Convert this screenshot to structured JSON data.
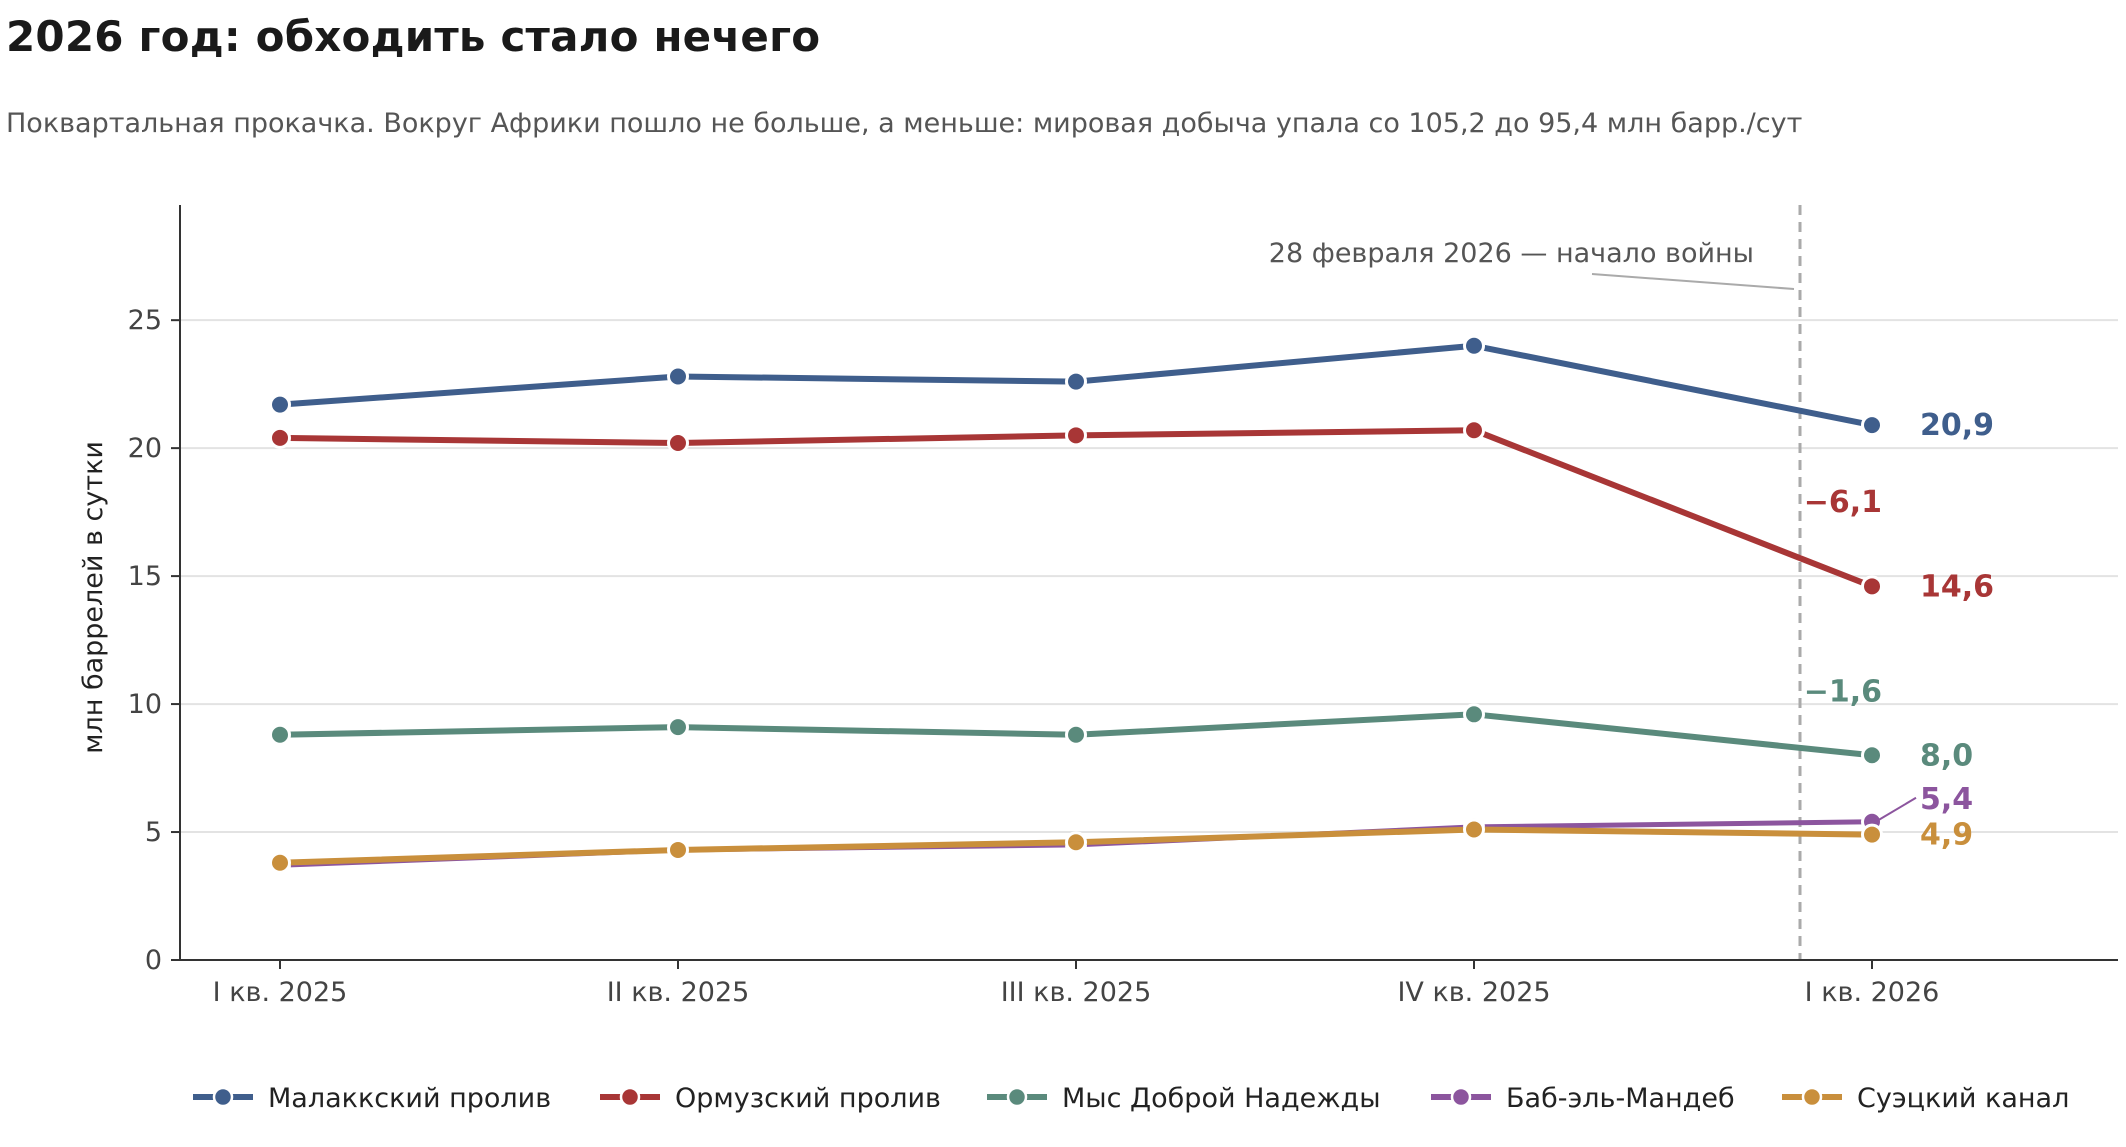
{
  "title": "2026 год: обходить стало нечего",
  "subtitle": "Поквартальная прокачка. Вокруг Африки пошло не больше, а меньше: мировая добыча упала со 105,2 до 95,4 млн барр./сут",
  "chart_data": {
    "type": "line",
    "categories": [
      "I кв. 2025",
      "II кв. 2025",
      "III кв. 2025",
      "IV кв. 2025",
      "I кв. 2026"
    ],
    "ylabel": "млн баррелей в сутки",
    "xlabel": "",
    "ylim": [
      0,
      29.5
    ],
    "yticks": [
      0,
      5,
      10,
      15,
      20,
      25
    ],
    "grid": "horizontal",
    "legend": "bottom",
    "series": [
      {
        "name": "Малаккский пролив",
        "color": "#3f5e8c",
        "values": [
          21.7,
          22.8,
          22.6,
          24.0,
          20.9
        ],
        "end_label": "20,9"
      },
      {
        "name": "Ормузский пролив",
        "color": "#a83636",
        "values": [
          20.4,
          20.2,
          20.5,
          20.7,
          14.6
        ],
        "end_label": "14,6",
        "change_label": "−6,1"
      },
      {
        "name": "Мыс Доброй Надежды",
        "color": "#5a8a7c",
        "values": [
          8.8,
          9.1,
          8.8,
          9.6,
          8.0
        ],
        "end_label": "8,0",
        "change_label": "−1,6"
      },
      {
        "name": "Баб-эль-Мандеб",
        "color": "#8c559e",
        "values": [
          3.7,
          4.3,
          4.5,
          5.2,
          5.4
        ],
        "end_label": "5,4"
      },
      {
        "name": "Суэцкий канал",
        "color": "#c98f3c",
        "values": [
          3.8,
          4.3,
          4.6,
          5.1,
          4.9
        ],
        "end_label": "4,9"
      }
    ],
    "annotation": {
      "text": "28 февраля 2026 — начало войны",
      "x_position": "between IV кв. 2025 and I кв. 2026"
    }
  }
}
